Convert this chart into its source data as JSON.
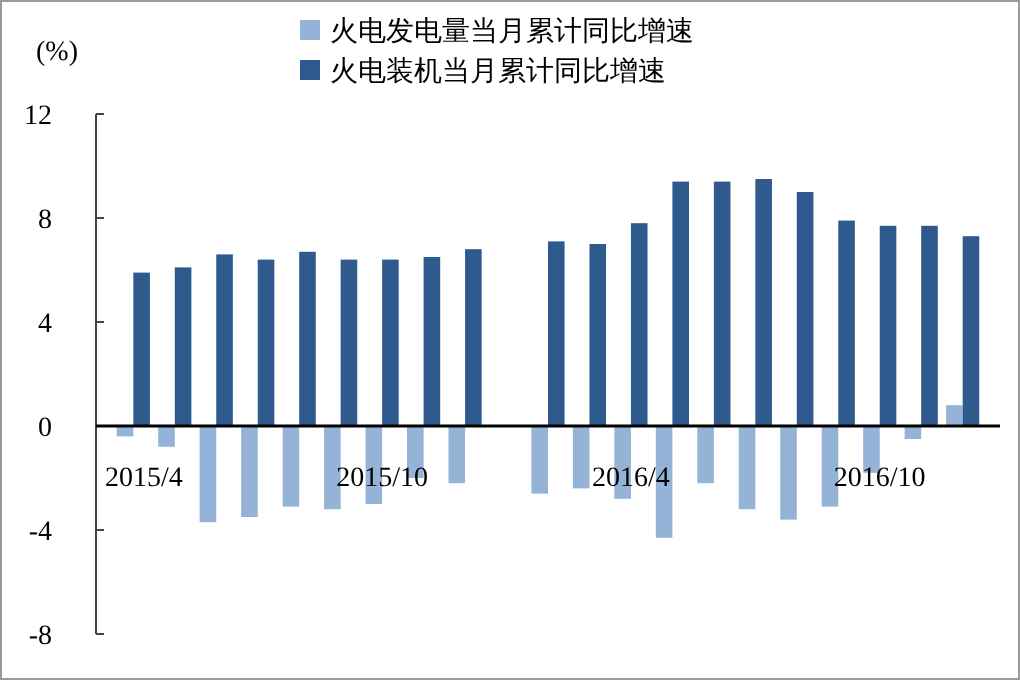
{
  "chart_data": {
    "type": "bar",
    "ylabel": "(%)",
    "categories": [
      "2015/4",
      null,
      null,
      null,
      null,
      null,
      "2015/10",
      null,
      null,
      null,
      null,
      null,
      "2016/4",
      null,
      null,
      null,
      null,
      null,
      "2016/10",
      null,
      null
    ],
    "series": [
      {
        "name": "火电发电量当月累计同比增速",
        "color": "#95b3d7",
        "values": [
          -0.4,
          -0.8,
          -3.7,
          -3.5,
          -3.1,
          -3.2,
          -3.0,
          -2.0,
          -2.2,
          null,
          -2.6,
          -2.4,
          -2.8,
          -4.3,
          -2.2,
          -3.2,
          -3.6,
          -3.1,
          -1.8,
          -0.5,
          0.8
        ]
      },
      {
        "name": "火电装机当月累计同比增速",
        "color": "#2e5a8e",
        "values": [
          5.9,
          6.1,
          6.6,
          6.4,
          6.7,
          6.4,
          6.4,
          6.5,
          6.8,
          null,
          7.1,
          7.0,
          7.8,
          9.4,
          9.4,
          9.5,
          9.0,
          7.9,
          7.7,
          7.7,
          7.3
        ]
      }
    ],
    "ylim": [
      -8,
      12
    ],
    "yticks": [
      -8,
      -4,
      0,
      4,
      8,
      12
    ],
    "grid": false,
    "legend": "top"
  }
}
